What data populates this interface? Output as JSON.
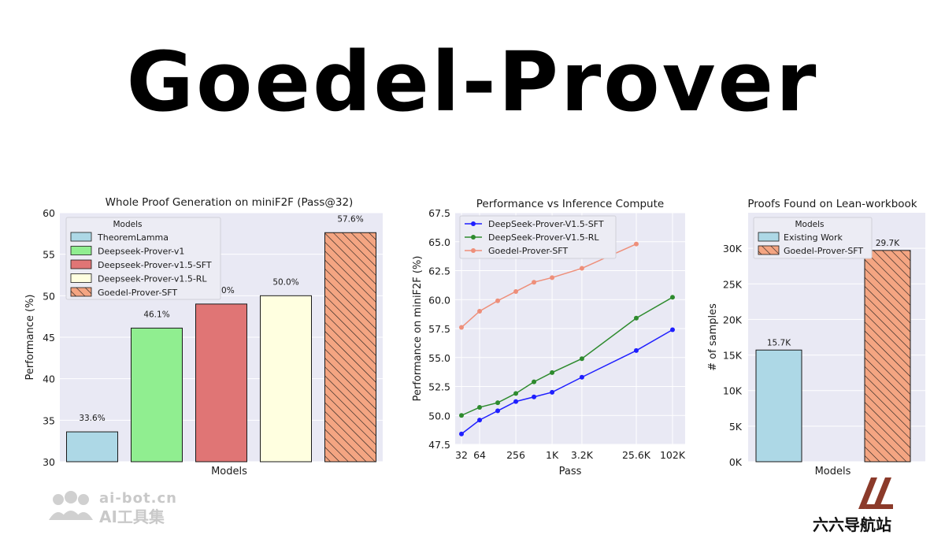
{
  "page_title": "Goedel-Prover",
  "colors": {
    "plot_bg": "#e9e9f4",
    "grid": "#ffffff",
    "theoremlamma": "#add8e6",
    "deepseek_v1": "#90ee90",
    "deepseek_v15_sft": "#e07575",
    "deepseek_v15_rl": "#ffffe0",
    "goedel_sft": "#f4a582",
    "line_blue": "#1f1fff",
    "line_green": "#2e8b2e",
    "line_salmon": "#ee8f7a"
  },
  "watermarks": {
    "left_line1": "ai-bot.cn",
    "left_line2": "AI工具集",
    "left_icon": "people-logo-icon",
    "right_text": "六六导航站",
    "right_icon": "ll-logo-icon"
  },
  "chart_data": [
    {
      "type": "bar",
      "title": "Whole Proof Generation on miniF2F (Pass@32)",
      "xlabel": "Models",
      "ylabel": "Performance (%)",
      "ylim": [
        30,
        60
      ],
      "yticks": [
        30,
        35,
        40,
        45,
        50,
        55,
        60
      ],
      "grid": true,
      "legend_title": "Models",
      "legend_position": "upper-left",
      "categories": [
        "TheoremLamma",
        "Deepseek-Prover-v1",
        "Deepseek-Prover-v1.5-SFT",
        "Deepseek-Prover-v1.5-RL",
        "Goedel-Prover-SFT"
      ],
      "values": [
        33.6,
        46.1,
        49.0,
        50.0,
        57.6
      ],
      "value_labels": [
        "33.6%",
        "46.1%",
        "49.0%",
        "50.0%",
        "57.6%"
      ],
      "colors": [
        "#add8e6",
        "#90ee90",
        "#e07575",
        "#ffffe0",
        "#f4a582"
      ],
      "hatched": [
        false,
        false,
        false,
        false,
        true
      ]
    },
    {
      "type": "line",
      "title": "Performance vs Inference Compute",
      "xlabel": "Pass",
      "ylabel": "Performance on miniF2F (%)",
      "x_scale": "log2",
      "x": [
        32,
        64,
        128,
        256,
        512,
        1024,
        3200,
        25600,
        102400
      ],
      "xtick_values": [
        32,
        64,
        256,
        1024,
        3200,
        25600,
        102400
      ],
      "xtick_labels": [
        "32",
        "64",
        "256",
        "1K",
        "3.2K",
        "25.6K",
        "102K"
      ],
      "ylim": [
        47.5,
        67.5
      ],
      "yticks": [
        47.5,
        50.0,
        52.5,
        55.0,
        57.5,
        60.0,
        62.5,
        65.0,
        67.5
      ],
      "ytick_labels": [
        "47.5",
        "50.0",
        "52.5",
        "55.0",
        "57.5",
        "60.0",
        "62.5",
        "65.0",
        "67.5"
      ],
      "grid": true,
      "legend_position": "upper-left",
      "series": [
        {
          "name": "DeepSeek-Prover-V1.5-SFT",
          "color": "#1f1fff",
          "x": [
            32,
            64,
            128,
            256,
            512,
            1024,
            3200,
            25600,
            102400
          ],
          "values": [
            48.4,
            49.6,
            50.4,
            51.2,
            51.6,
            52.0,
            53.3,
            55.6,
            57.4
          ]
        },
        {
          "name": "DeepSeek-Prover-V1.5-RL",
          "color": "#2e8b2e",
          "x": [
            32,
            64,
            128,
            256,
            512,
            1024,
            3200,
            25600,
            102400
          ],
          "values": [
            50.0,
            50.7,
            51.1,
            51.9,
            52.9,
            53.7,
            54.9,
            58.4,
            60.2
          ]
        },
        {
          "name": "Goedel-Prover-SFT",
          "color": "#ee8f7a",
          "x": [
            32,
            64,
            128,
            256,
            512,
            1024,
            3200,
            25600
          ],
          "values": [
            57.6,
            59.0,
            59.9,
            60.7,
            61.5,
            61.9,
            62.7,
            64.8
          ]
        }
      ]
    },
    {
      "type": "bar",
      "title": "Proofs Found on Lean-workbook",
      "xlabel": "Models",
      "ylabel": "# of samples",
      "ylim": [
        0,
        35000
      ],
      "yticks": [
        0,
        5000,
        10000,
        15000,
        20000,
        25000,
        30000
      ],
      "ytick_labels": [
        "0K",
        "5K",
        "10K",
        "15K",
        "20K",
        "25K",
        "30K"
      ],
      "grid": true,
      "legend_title": "Models",
      "legend_position": "upper-left",
      "categories": [
        "Existing Work",
        "Goedel-Prover-SFT"
      ],
      "values": [
        15700,
        29700
      ],
      "value_labels": [
        "15.7K",
        "29.7K"
      ],
      "colors": [
        "#add8e6",
        "#f4a582"
      ],
      "hatched": [
        false,
        true
      ]
    }
  ]
}
